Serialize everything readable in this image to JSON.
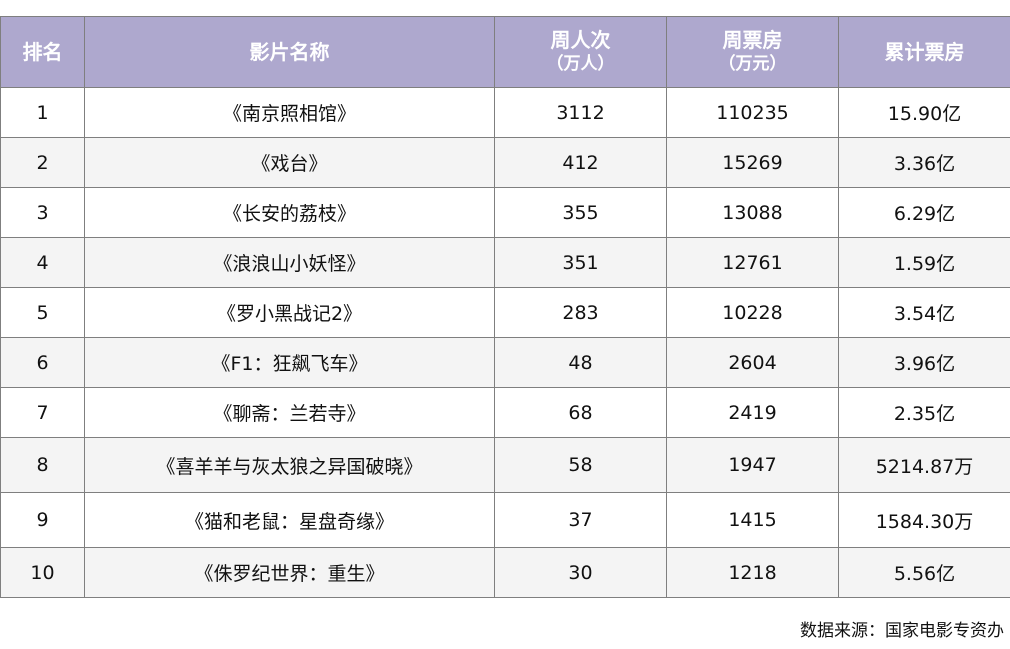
{
  "table": {
    "headers": {
      "rank": "排名",
      "title": "影片名称",
      "weekly_admissions": "周人次",
      "weekly_admissions_unit": "（万人）",
      "weekly_gross": "周票房",
      "weekly_gross_unit": "（万元）",
      "total_gross": "累计票房"
    },
    "rows": [
      {
        "rank": "1",
        "title": "《南京照相馆》",
        "admissions": "3112",
        "gross": "110235",
        "total": "15.90亿"
      },
      {
        "rank": "2",
        "title": "《戏台》",
        "admissions": "412",
        "gross": "15269",
        "total": "3.36亿"
      },
      {
        "rank": "3",
        "title": "《长安的荔枝》",
        "admissions": "355",
        "gross": "13088",
        "total": "6.29亿"
      },
      {
        "rank": "4",
        "title": "《浪浪山小妖怪》",
        "admissions": "351",
        "gross": "12761",
        "total": "1.59亿"
      },
      {
        "rank": "5",
        "title": "《罗小黑战记2》",
        "admissions": "283",
        "gross": "10228",
        "total": "3.54亿"
      },
      {
        "rank": "6",
        "title": "《F1：狂飙飞车》",
        "admissions": "48",
        "gross": "2604",
        "total": "3.96亿"
      },
      {
        "rank": "7",
        "title": "《聊斋：兰若寺》",
        "admissions": "68",
        "gross": "2419",
        "total": "2.35亿"
      },
      {
        "rank": "8",
        "title": "《喜羊羊与灰太狼之异国破晓》",
        "admissions": "58",
        "gross": "1947",
        "total": "5214.87万"
      },
      {
        "rank": "9",
        "title": "《猫和老鼠：星盘奇缘》",
        "admissions": "37",
        "gross": "1415",
        "total": "1584.30万"
      },
      {
        "rank": "10",
        "title": "《侏罗纪世界：重生》",
        "admissions": "30",
        "gross": "1218",
        "total": "5.56亿"
      }
    ]
  },
  "source": "数据来源：国家电影专资办",
  "colors": {
    "header_bg": "#aea8ce",
    "header_text": "#ffffff",
    "alt_row_bg": "#f4f4f4",
    "border": "#7f7f7f"
  }
}
